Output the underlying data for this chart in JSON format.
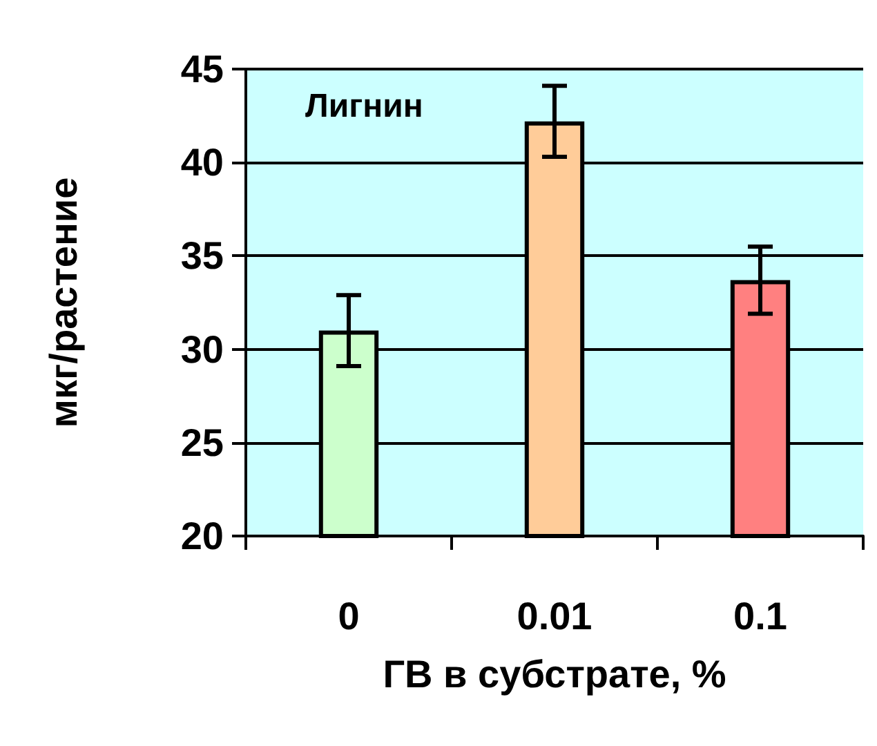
{
  "chart_data": {
    "type": "bar",
    "title": "Лигнин",
    "xlabel": "ГВ в субстрате, %",
    "ylabel": "мкг/растение",
    "categories": [
      "0",
      "0.01",
      "0.1"
    ],
    "values": [
      31.0,
      42.2,
      33.7
    ],
    "colors": [
      "#ccffcc",
      "#ffcc99",
      "#ff8080"
    ],
    "errors": [
      1.9,
      1.9,
      1.8
    ],
    "ylim": [
      20,
      45
    ],
    "yticks": [
      20,
      25,
      30,
      35,
      40,
      45
    ],
    "grid": "y"
  }
}
